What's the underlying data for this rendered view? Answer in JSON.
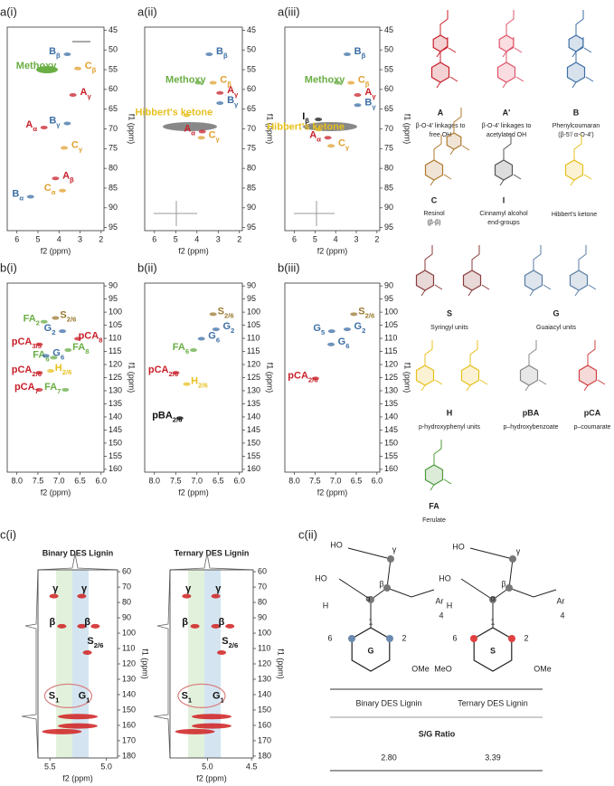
{
  "panels_a": [
    {
      "label": "a(i)",
      "xlabel": "f2 (ppm)",
      "ylabel": "f1 (ppm)",
      "xticks": [
        6,
        5,
        4,
        3,
        2
      ],
      "yticks": [
        45,
        50,
        55,
        60,
        65,
        70,
        75,
        80,
        85,
        90,
        95
      ],
      "peaks": [
        {
          "main": "B",
          "sub": "β",
          "color": "#3d6fa6"
        },
        {
          "main": "Methoxy",
          "color": "#6aae45"
        },
        {
          "main": "C",
          "sub": "β",
          "color": "#e0a030"
        },
        {
          "main": "A",
          "sub": "γ",
          "color": "#c8202a"
        },
        {
          "main": "B",
          "sub": "γ",
          "color": "#3d6fa6"
        },
        {
          "main": "A",
          "sub": "α",
          "color": "#c8202a"
        },
        {
          "main": "C",
          "sub": "γ",
          "color": "#e0a030"
        },
        {
          "main": "A",
          "sub": "β",
          "color": "#c8202a"
        },
        {
          "main": "B",
          "sub": "α",
          "color": "#3d6fa6"
        },
        {
          "main": "C",
          "sub": "α",
          "color": "#e0a030"
        }
      ]
    },
    {
      "label": "a(ii)",
      "xlabel": "f2 (ppm)",
      "ylabel": "f1 (ppm)",
      "xticks": [
        6,
        5,
        4,
        3,
        2
      ],
      "yticks": [
        45,
        50,
        55,
        60,
        65,
        70,
        75,
        80,
        85,
        90,
        95
      ],
      "peaks": [
        {
          "main": "B",
          "sub": "β",
          "color": "#3d6fa6"
        },
        {
          "main": "Methoxy",
          "color": "#6aae45"
        },
        {
          "main": "C",
          "sub": "β",
          "color": "#e0a030"
        },
        {
          "main": "A",
          "sub": "γ",
          "color": "#c8202a"
        },
        {
          "main": "B",
          "sub": "γ",
          "color": "#3d6fa6"
        },
        {
          "main": "Hibbert's ketone",
          "color": "#e8c020"
        },
        {
          "main": "A",
          "sub": "α",
          "color": "#c8202a"
        },
        {
          "main": "C",
          "sub": "γ",
          "color": "#e0a030"
        }
      ]
    },
    {
      "label": "a(iii)",
      "xlabel": "f2 (ppm)",
      "ylabel": "f1 (ppm)",
      "xticks": [
        6,
        5,
        4,
        3,
        2
      ],
      "yticks": [
        45,
        50,
        55,
        60,
        65,
        70,
        75,
        80,
        85,
        90,
        95
      ],
      "peaks": [
        {
          "main": "B",
          "sub": "β",
          "color": "#3d6fa6"
        },
        {
          "main": "Methoxy",
          "color": "#6aae45"
        },
        {
          "main": "C",
          "sub": "β",
          "color": "#e0a030"
        },
        {
          "main": "A",
          "sub": "γ",
          "color": "#c8202a"
        },
        {
          "main": "B",
          "sub": "γ",
          "color": "#3d6fa6"
        },
        {
          "main": "I",
          "sub": "β",
          "color": "#111111"
        },
        {
          "main": "Hibbert's ketone",
          "color": "#e8c020"
        },
        {
          "main": "A",
          "sub": "α",
          "color": "#c8202a"
        },
        {
          "main": "C",
          "sub": "γ",
          "color": "#e0a030"
        }
      ]
    }
  ],
  "panels_b": [
    {
      "label": "b(i)",
      "xlabel": "f2 (ppm)",
      "ylabel": "f1 (ppm)",
      "xticks": [
        {
          "value": 8,
          "label": "8.0"
        },
        7.5,
        {
          "value": 7,
          "label": "7.0"
        },
        6.5,
        {
          "value": 6,
          "label": "6.0"
        }
      ],
      "yticks": [
        90,
        95,
        100,
        105,
        110,
        115,
        120,
        125,
        130,
        135,
        140,
        145,
        150,
        155,
        160
      ],
      "peaks": [
        {
          "main": "FA",
          "sub": "2",
          "color": "#6aae45"
        },
        {
          "main": "S",
          "sub": "2/6",
          "color": "#9a7a30"
        },
        {
          "main": "G",
          "sub": "2",
          "color": "#3d6fa6"
        },
        {
          "main": "pCA",
          "sub": "3/5",
          "color": "#c8202a"
        },
        {
          "main": "pCA",
          "sub": "8",
          "color": "#c8202a"
        },
        {
          "main": "FA",
          "sub": "6",
          "color": "#6aae45"
        },
        {
          "main": "G",
          "sub": "6",
          "color": "#3d6fa6"
        },
        {
          "main": "FA",
          "sub": "8",
          "color": "#6aae45"
        },
        {
          "main": "pCA",
          "sub": "2/6",
          "color": "#c8202a"
        },
        {
          "main": "H",
          "sub": "2/6",
          "color": "#e8c020"
        },
        {
          "main": "pCA",
          "sub": "7",
          "color": "#c8202a"
        },
        {
          "main": "FA",
          "sub": "7",
          "color": "#6aae45"
        }
      ]
    },
    {
      "label": "b(ii)",
      "xlabel": "f2 (ppm)",
      "ylabel": "f1 (ppm)",
      "xticks": [
        {
          "value": 8,
          "label": "8.0"
        },
        7.5,
        {
          "value": 7,
          "label": "7.0"
        },
        6.5,
        {
          "value": 6,
          "label": "6.0"
        }
      ],
      "yticks": [
        90,
        95,
        100,
        105,
        110,
        115,
        120,
        125,
        130,
        135,
        140,
        145,
        150,
        155,
        160
      ],
      "peaks": [
        {
          "main": "S",
          "sub": "2/6",
          "color": "#9a7a30"
        },
        {
          "main": "G",
          "sub": "2",
          "color": "#3d6fa6"
        },
        {
          "main": "G",
          "sub": "6",
          "color": "#3d6fa6"
        },
        {
          "main": "FA",
          "sub": "6",
          "color": "#6aae45"
        },
        {
          "main": "pCA",
          "sub": "2/6",
          "color": "#c8202a"
        },
        {
          "main": "H",
          "sub": "2/6",
          "color": "#e8c020"
        },
        {
          "main": "pBA",
          "sub": "2/6",
          "color": "#111111"
        }
      ]
    },
    {
      "label": "b(iii)",
      "xlabel": "f2 (ppm)",
      "ylabel": "f1 (ppm)",
      "xticks": [
        {
          "value": 8,
          "label": "8.0"
        },
        7.5,
        {
          "value": 7,
          "label": "7.0"
        },
        6.5,
        {
          "value": 6,
          "label": "6.0"
        }
      ],
      "yticks": [
        90,
        95,
        100,
        105,
        110,
        115,
        120,
        125,
        130,
        135,
        140,
        145,
        150,
        155,
        160
      ],
      "peaks": [
        {
          "main": "S",
          "sub": "2/6",
          "color": "#9a7a30"
        },
        {
          "main": "G",
          "sub": "5",
          "color": "#3d6fa6"
        },
        {
          "main": "G",
          "sub": "2",
          "color": "#3d6fa6"
        },
        {
          "main": "G",
          "sub": "6",
          "color": "#3d6fa6"
        },
        {
          "main": "pCA",
          "sub": "2/6",
          "color": "#c8202a"
        }
      ]
    }
  ],
  "panel_c1": {
    "label": "c(i)",
    "spectra": [
      {
        "title": "Binary DES Lignin",
        "xlabel": "f2 (ppm)",
        "ylabel": "f1 (ppm)",
        "xticks": [
          5.5,
          {
            "value": 5,
            "label": "5.0"
          }
        ],
        "yticks": [
          60,
          70,
          80,
          90,
          100,
          110,
          120,
          130,
          140,
          150,
          160,
          170,
          180
        ],
        "peaks": [
          {
            "main": "γ"
          },
          {
            "main": "γ"
          },
          {
            "main": "β"
          },
          {
            "main": "β"
          },
          {
            "main": "S",
            "sub": "2/6"
          },
          {
            "main": "S",
            "sub": "1"
          },
          {
            "main": "G",
            "sub": "1"
          }
        ]
      },
      {
        "title": "Ternary DES Lignin",
        "xlabel": "f2 (ppm)",
        "ylabel": "f1 (ppm)",
        "xticks": [
          {
            "value": 5,
            "label": "5.0"
          },
          4.5
        ],
        "yticks": [
          60,
          70,
          80,
          90,
          100,
          110,
          120,
          130,
          140,
          150,
          160,
          170,
          180
        ],
        "peaks": [
          {
            "main": "γ"
          },
          {
            "main": "γ"
          },
          {
            "main": "β"
          },
          {
            "main": "β"
          },
          {
            "main": "S",
            "sub": "2/6"
          },
          {
            "main": "S",
            "sub": "1"
          },
          {
            "main": "G",
            "sub": "1"
          }
        ]
      }
    ]
  },
  "panel_c2": {
    "label": "c(ii)",
    "structures": [
      {
        "ring": "G",
        "atoms": [
          "HO",
          "γ",
          "HO",
          "β",
          "α",
          "H",
          "1",
          "Ar",
          "4",
          "6",
          "2",
          "OMe"
        ]
      },
      {
        "ring": "S",
        "atoms": [
          "HO",
          "γ",
          "HO",
          "β",
          "α",
          "H",
          "1",
          "Ar",
          "4",
          "6",
          "2",
          "MeO",
          "OMe"
        ]
      }
    ],
    "table": {
      "headers": [
        "Binary DES Lignin",
        "Ternary DES Lignin"
      ],
      "row_label": "S/G Ratio",
      "values": [
        "2.80",
        "3.39"
      ]
    }
  },
  "structures_top": [
    {
      "letter": "A",
      "caption": [
        "β-O-4' linkages to",
        "free OH"
      ],
      "color": "#c8202a"
    },
    {
      "letter": "A'",
      "caption": [
        "β-O-4' linkages to",
        "acetylated OH"
      ],
      "color": "#e0556a"
    },
    {
      "letter": "B",
      "caption": [
        "Phenylcoumaran",
        "(β-5'/ α-O-4')"
      ],
      "color": "#3d6fa6"
    },
    {
      "letter": "C",
      "caption": [
        "Resinol",
        "(β-β)"
      ],
      "color": "#b07a30"
    },
    {
      "letter": "I",
      "caption": [
        "Cinnamyl alcohol",
        "end-groups"
      ],
      "color": "#555555"
    },
    {
      "caption": [
        "Hibbert's ketone"
      ],
      "color": "#e8c020"
    }
  ],
  "units": [
    {
      "letter": "S",
      "caption": "Syringyl units",
      "color": "#8a3b3b"
    },
    {
      "letter": "G",
      "caption": "Guaiacyl units",
      "color": "#5a7ea6"
    },
    {
      "letter": "H",
      "caption": "p-hydroxyphenyl units",
      "color": "#e8c020"
    },
    {
      "letter": "pBA",
      "caption": "p–hydroxybenzoate",
      "color": "#888888"
    },
    {
      "letter": "pCA",
      "caption": "p–coumarate",
      "color": "#d04040"
    },
    {
      "letter": "FA",
      "caption": "Ferulate",
      "color": "#4f9a3a"
    }
  ]
}
